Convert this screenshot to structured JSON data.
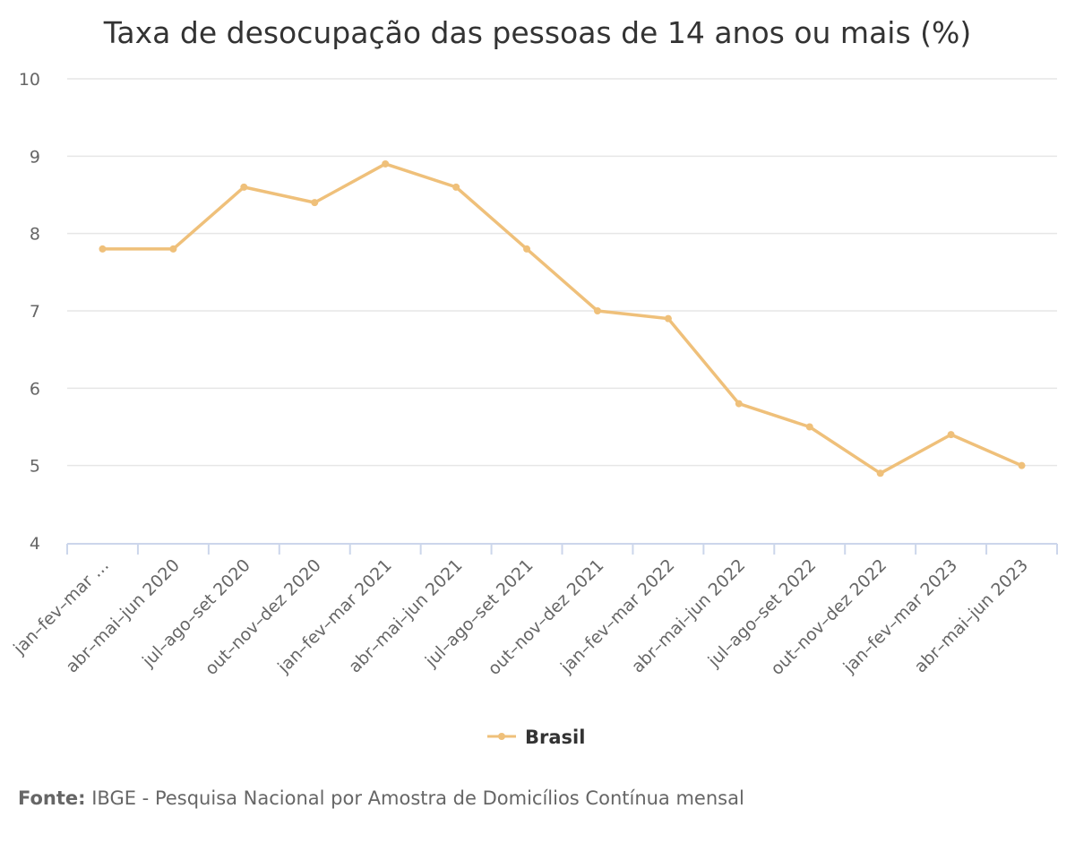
{
  "chart_data": {
    "type": "line",
    "title": "Taxa de desocupação das pessoas de 14 anos ou mais (%)",
    "xlabel": "",
    "ylabel": "",
    "ylim": [
      4,
      10
    ],
    "yticks": [
      4,
      5,
      6,
      7,
      8,
      9,
      10
    ],
    "grid": true,
    "categories": [
      "jan–fev–mar …",
      "abr–mai–jun 2020",
      "jul–ago–set 2020",
      "out–nov–dez 2020",
      "jan–fev–mar 2021",
      "abr–mai–jun 2021",
      "jul–ago–set 2021",
      "out–nov–dez 2021",
      "jan–fev–mar 2022",
      "abr–mai–jun 2022",
      "jul–ago–set 2022",
      "out–nov–dez 2022",
      "jan–fev–mar 2023",
      "abr–mai–jun 2023"
    ],
    "series": [
      {
        "name": "Brasil",
        "color": "#efc07a",
        "values": [
          7.8,
          7.8,
          8.6,
          8.4,
          8.9,
          8.6,
          7.8,
          7.0,
          6.9,
          5.8,
          5.5,
          4.9,
          5.4,
          5.0
        ]
      }
    ],
    "legend_placement": "bottom-center"
  },
  "source": {
    "label": "Fonte:",
    "text": " IBGE - Pesquisa Nacional por Amostra de Domicílios Contínua mensal"
  }
}
